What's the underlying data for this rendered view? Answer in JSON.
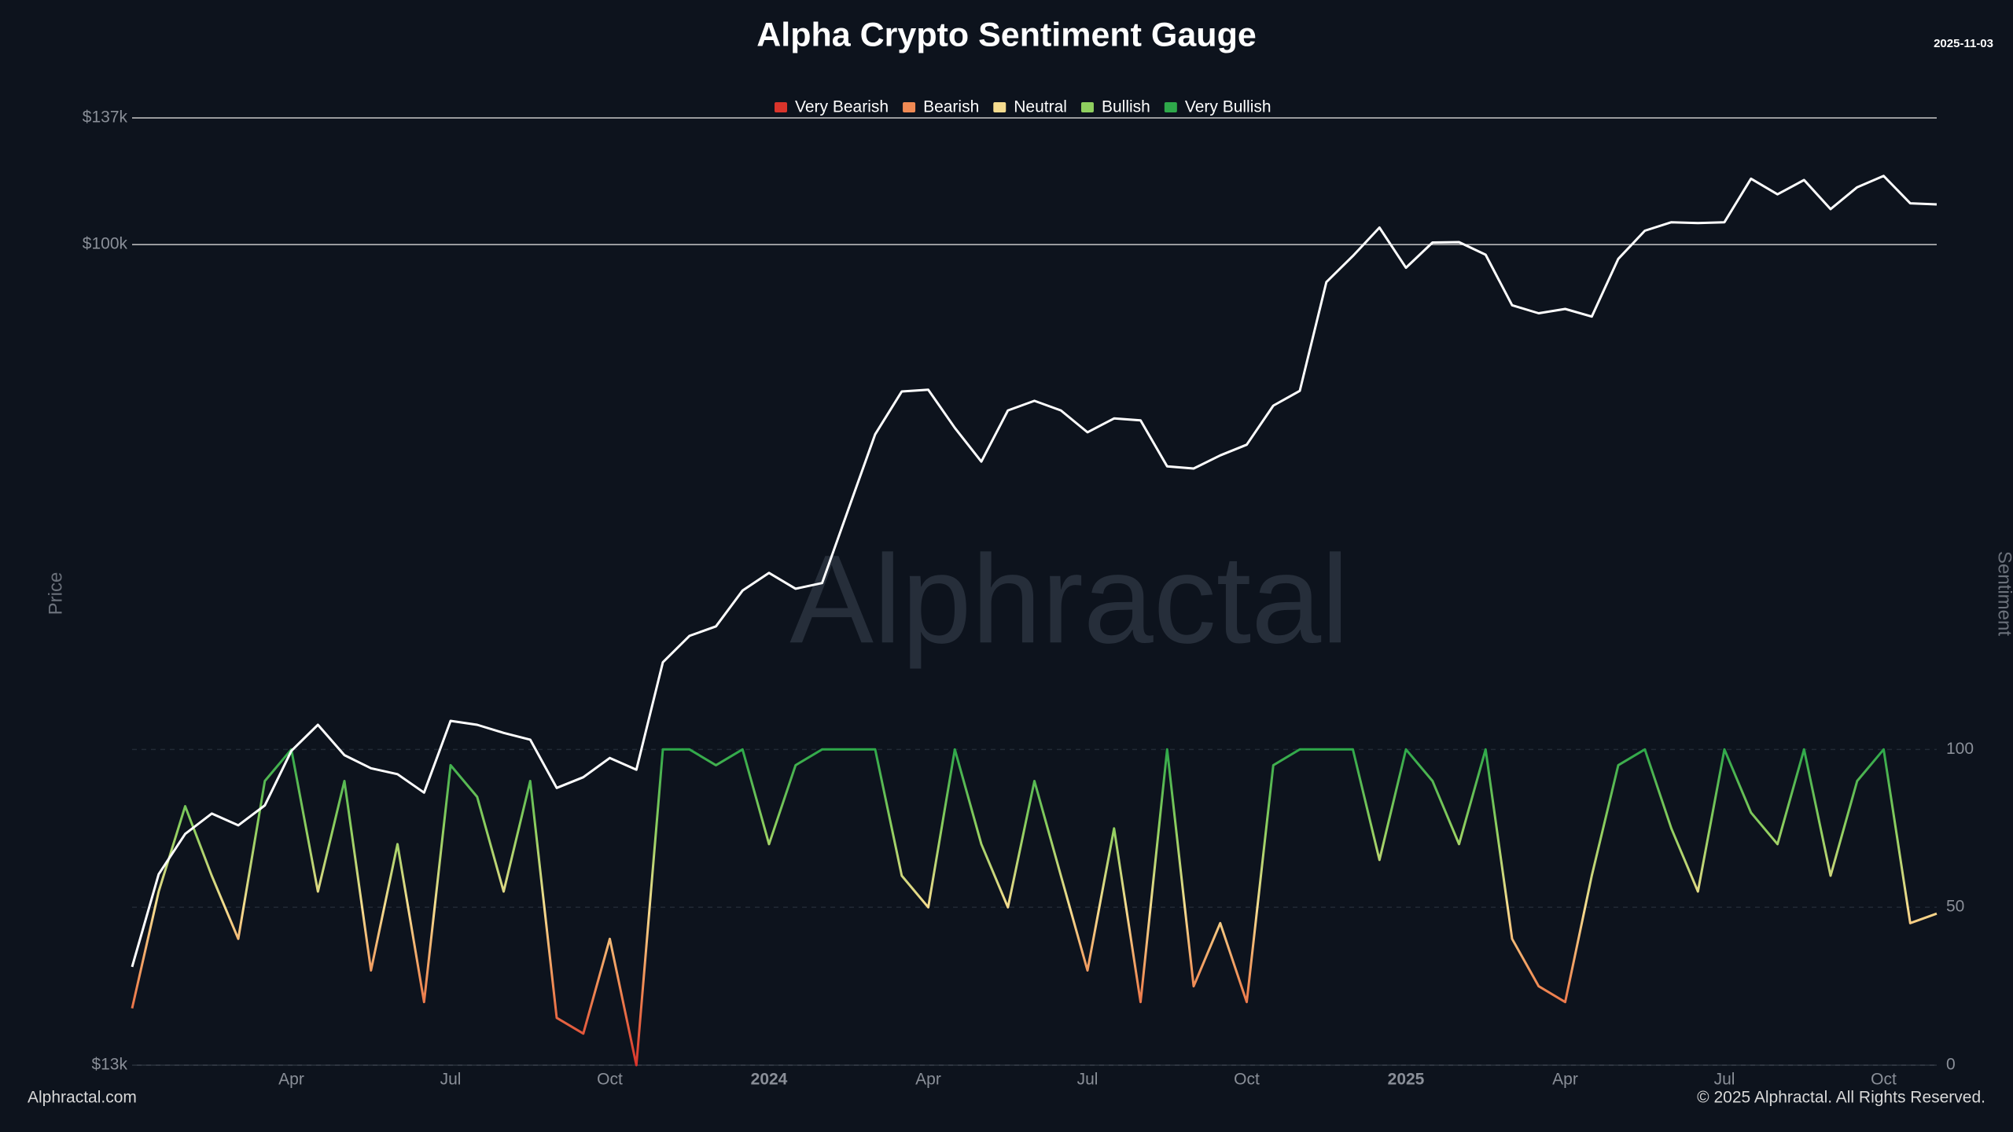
{
  "chart_data": {
    "type": "line",
    "title": "Alpha Crypto Sentiment Gauge",
    "date": "2025-11-03",
    "ylabel": "Price",
    "y2label": "Sentiment",
    "watermark": "Alphractal",
    "footer_left": "Alphractal.com",
    "footer_right": "© 2025 Alphractal. All Rights Reserved.",
    "log_y": true,
    "grid": true,
    "legend_position": "top",
    "legend": [
      {
        "name": "Very Bearish",
        "color": "#d9342b"
      },
      {
        "name": "Bearish",
        "color": "#f08a54"
      },
      {
        "name": "Neutral",
        "color": "#f6dc8f"
      },
      {
        "name": "Bullish",
        "color": "#8fcf5f"
      },
      {
        "name": "Very Bullish",
        "color": "#2ea84a"
      }
    ],
    "categories": [
      null,
      null,
      null,
      null,
      null,
      null,
      "Apr",
      null,
      null,
      null,
      null,
      null,
      "Jul",
      null,
      null,
      null,
      null,
      null,
      "Oct",
      null,
      null,
      null,
      null,
      null,
      "2024",
      null,
      null,
      null,
      null,
      null,
      "Apr",
      null,
      null,
      null,
      null,
      null,
      "Jul",
      null,
      null,
      null,
      null,
      null,
      "Oct",
      null,
      null,
      null,
      null,
      null,
      "2025",
      null,
      null,
      null,
      null,
      null,
      "Apr",
      null,
      null,
      null,
      null,
      null,
      "Jul",
      null,
      null,
      null,
      null,
      null,
      "Oct",
      null,
      null
    ],
    "ylim": [
      13000,
      137000
    ],
    "yticks": [
      {
        "value": 13000,
        "label": "$13k"
      },
      {
        "value": 100000,
        "label": "$100k"
      },
      {
        "value": 137000,
        "label": "$137k"
      }
    ],
    "y2lim": [
      0,
      300
    ],
    "y2ticks": [
      0,
      50,
      100
    ],
    "series": [
      {
        "color": "#ffffff",
        "values": [
          16600,
          20900,
          23100,
          24300,
          23600,
          24800,
          28400,
          30300,
          28100,
          27200,
          26800,
          25600,
          30600,
          30300,
          29700,
          29200,
          25900,
          26600,
          27900,
          27100,
          35400,
          37800,
          38700,
          42300,
          44200,
          42500,
          43100,
          51900,
          62400,
          69400,
          69700,
          63400,
          58300,
          66200,
          67800,
          66200,
          62700,
          64900,
          64600,
          57600,
          57300,
          59200,
          60800,
          67000,
          69500,
          91100,
          97200,
          104300,
          94400,
          100500,
          100600,
          97500,
          86000,
          84300,
          85200,
          83600,
          96500,
          103500,
          105700,
          105500,
          105700,
          117800,
          113300,
          117400,
          109200,
          115300,
          118600,
          110800,
          110500
        ]
      },
      {
        "axis": "y2",
        "values": [
          18,
          55,
          82,
          60,
          40,
          90,
          100,
          55,
          90,
          30,
          70,
          20,
          95,
          85,
          55,
          90,
          15,
          10,
          40,
          0,
          100,
          100,
          95,
          100,
          70,
          95,
          100,
          100,
          100,
          60,
          50,
          100,
          70,
          50,
          90,
          60,
          30,
          75,
          20,
          100,
          25,
          45,
          20,
          95,
          100,
          100,
          100,
          65,
          100,
          90,
          70,
          100,
          40,
          25,
          20,
          60,
          95,
          100,
          75,
          55,
          100,
          80,
          70,
          100,
          60,
          90,
          100,
          45,
          48
        ]
      }
    ]
  }
}
